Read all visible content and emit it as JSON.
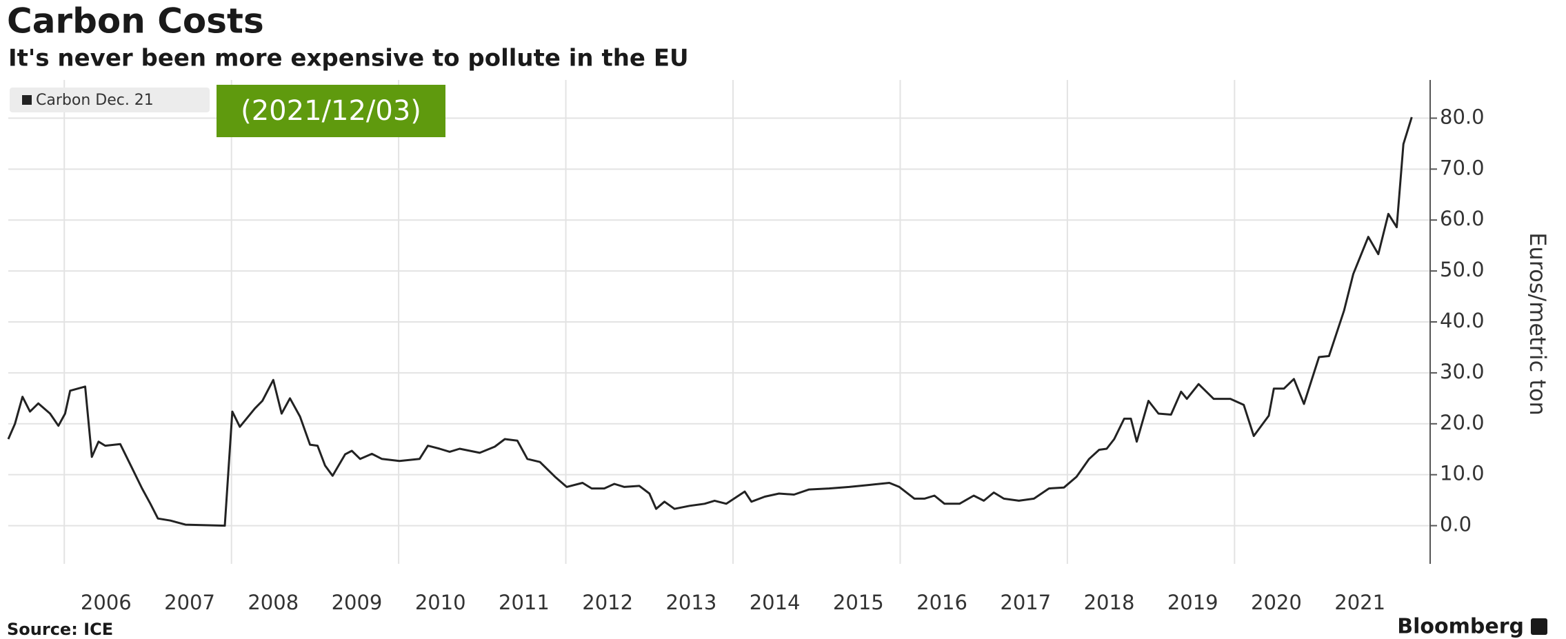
{
  "chart_data": {
    "type": "line",
    "title": "Carbon Costs",
    "subtitle": "It's never been more expensive to pollute in the EU",
    "annotation": "(2021/12/03)",
    "annotation_color": "#5f9a0e",
    "y_label": "Euros/metric ton",
    "source": "Source: ICE",
    "brand": "Bloomberg",
    "legend": "top-left",
    "grid": true,
    "x": [
      2005.33,
      2005.41,
      2005.5,
      2005.59,
      2005.69,
      2005.83,
      2005.93,
      2006.01,
      2006.07,
      2006.25,
      2006.33,
      2006.41,
      2006.49,
      2006.67,
      2006.79,
      2006.93,
      2007.03,
      2007.12,
      2007.27,
      2007.45,
      2007.92,
      2008.01,
      2008.1,
      2008.28,
      2008.37,
      2008.5,
      2008.6,
      2008.7,
      2008.82,
      2008.94,
      2009.03,
      2009.12,
      2009.21,
      2009.36,
      2009.44,
      2009.54,
      2009.68,
      2009.8,
      2010.01,
      2010.25,
      2010.35,
      2010.49,
      2010.61,
      2010.73,
      2010.97,
      2011.15,
      2011.27,
      2011.42,
      2011.54,
      2011.69,
      2011.87,
      2012.01,
      2012.2,
      2012.31,
      2012.46,
      2012.58,
      2012.7,
      2012.88,
      2013.0,
      2013.08,
      2013.18,
      2013.3,
      2013.48,
      2013.66,
      2013.78,
      2013.92,
      2014.14,
      2014.22,
      2014.38,
      2014.55,
      2014.73,
      2014.91,
      2015.15,
      2015.39,
      2015.63,
      2015.87,
      2015.99,
      2016.17,
      2016.29,
      2016.41,
      2016.53,
      2016.71,
      2016.88,
      2017.0,
      2017.12,
      2017.24,
      2017.42,
      2017.6,
      2017.78,
      2017.96,
      2018.11,
      2018.26,
      2018.38,
      2018.47,
      2018.56,
      2018.68,
      2018.76,
      2018.83,
      2018.97,
      2019.09,
      2019.24,
      2019.36,
      2019.43,
      2019.57,
      2019.75,
      2019.95,
      2020.11,
      2020.23,
      2020.41,
      2020.47,
      2020.59,
      2020.71,
      2020.83,
      2021.01,
      2021.13,
      2021.31,
      2021.42,
      2021.6,
      2021.72,
      2021.84,
      2021.94,
      2022.02,
      2022.12
    ],
    "series": [
      {
        "name": "Carbon Dec. 21",
        "color": "#222222",
        "values": [
          17,
          20,
          25.3,
          22.4,
          24,
          22,
          19.6,
          22,
          26.5,
          27.3,
          13.5,
          16.5,
          15.7,
          16,
          12,
          7.3,
          4.3,
          1.4,
          1,
          0.2,
          0,
          22.4,
          19.4,
          23,
          24.5,
          28.6,
          22,
          25,
          21.4,
          15.9,
          15.7,
          11.8,
          9.8,
          14,
          14.7,
          13.1,
          14.1,
          13.1,
          12.7,
          13.1,
          15.7,
          15.1,
          14.5,
          15.1,
          14.3,
          15.5,
          17,
          16.7,
          13.1,
          12.5,
          9.6,
          7.6,
          8.4,
          7.3,
          7.3,
          8.2,
          7.6,
          7.8,
          6.3,
          3.3,
          4.7,
          3.3,
          3.9,
          4.3,
          4.9,
          4.3,
          6.7,
          4.7,
          5.7,
          6.3,
          6.1,
          7.1,
          7.3,
          7.6,
          8.0,
          8.4,
          7.6,
          5.3,
          5.3,
          5.9,
          4.3,
          4.3,
          5.9,
          4.9,
          6.5,
          5.3,
          4.9,
          5.3,
          7.3,
          7.5,
          9.6,
          13.1,
          14.9,
          15.1,
          17,
          21,
          21,
          16.5,
          24.5,
          22,
          21.8,
          26.3,
          24.9,
          27.8,
          24.9,
          24.9,
          23.7,
          17.6,
          21.6,
          26.9,
          26.9,
          28.8,
          23.9,
          33.1,
          33.3,
          42.2,
          49.4,
          56.7,
          53.3,
          61.2,
          58.6,
          74.9,
          80.2
        ]
      }
    ],
    "xlim": [
      2005.33,
      2022.34
    ],
    "ylim": [
      -7.5,
      87.5
    ],
    "xticks": [
      {
        "value": 2006.5,
        "label": "2006"
      },
      {
        "value": 2007.5,
        "label": "2007"
      },
      {
        "value": 2008.5,
        "label": "2008"
      },
      {
        "value": 2009.5,
        "label": "2009"
      },
      {
        "value": 2010.5,
        "label": "2010"
      },
      {
        "value": 2011.5,
        "label": "2011"
      },
      {
        "value": 2012.5,
        "label": "2012"
      },
      {
        "value": 2013.5,
        "label": "2013"
      },
      {
        "value": 2014.5,
        "label": "2014"
      },
      {
        "value": 2015.5,
        "label": "2015"
      },
      {
        "value": 2016.5,
        "label": "2016"
      },
      {
        "value": 2017.5,
        "label": "2017"
      },
      {
        "value": 2018.5,
        "label": "2018"
      },
      {
        "value": 2019.5,
        "label": "2019"
      },
      {
        "value": 2020.5,
        "label": "2020"
      },
      {
        "value": 2021.5,
        "label": "2021"
      }
    ],
    "xgrid": [
      2006,
      2008,
      2010,
      2012,
      2014,
      2016,
      2018,
      2020
    ],
    "yticks": [
      {
        "value": 0,
        "label": "0.0"
      },
      {
        "value": 10,
        "label": "10.0"
      },
      {
        "value": 20,
        "label": "20.0"
      },
      {
        "value": 30,
        "label": "30.0"
      },
      {
        "value": 40,
        "label": "40.0"
      },
      {
        "value": 50,
        "label": "50.0"
      },
      {
        "value": 60,
        "label": "60.0"
      },
      {
        "value": 70,
        "label": "70.0"
      },
      {
        "value": 80,
        "label": "80.0"
      }
    ]
  }
}
